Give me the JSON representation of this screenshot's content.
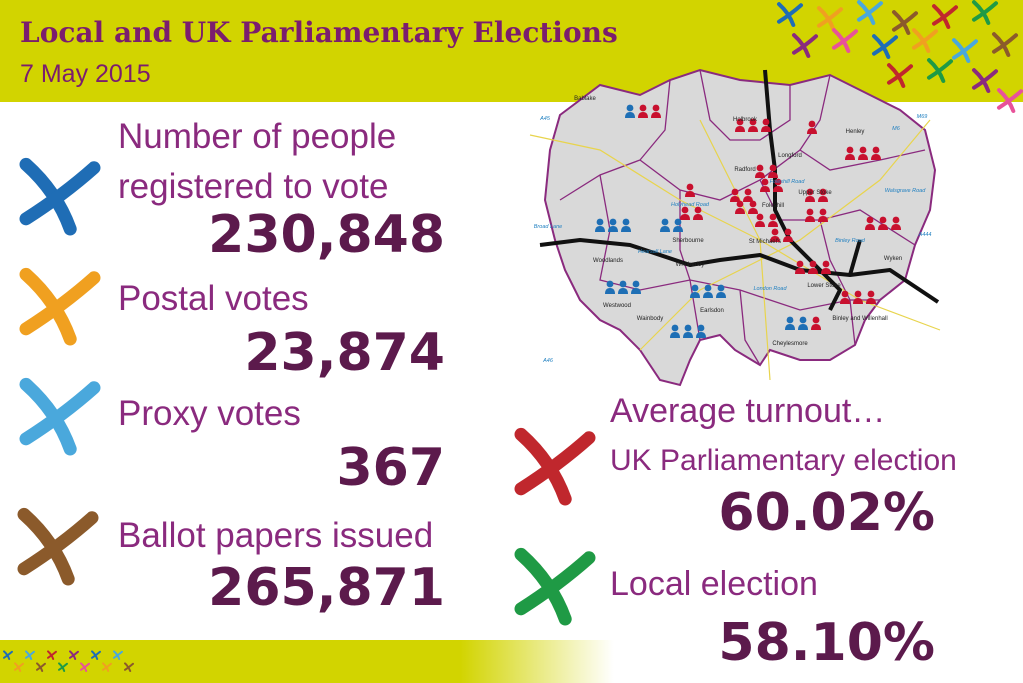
{
  "header": {
    "title": "Local and UK Parliamentary Elections",
    "date": "7 May 2015"
  },
  "stats": [
    {
      "label_lines": [
        "Number of people",
        "registered to vote"
      ],
      "value": "230,848"
    },
    {
      "label_lines": [
        "Postal votes"
      ],
      "value": "23,874"
    },
    {
      "label_lines": [
        "Proxy votes"
      ],
      "value": "367"
    },
    {
      "label_lines": [
        "Ballot papers issued"
      ],
      "value": "265,871"
    }
  ],
  "turnout": {
    "heading": "Average turnout…",
    "items": [
      {
        "label": "UK Parliamentary election",
        "value": "60.02%"
      },
      {
        "label": "Local election",
        "value": "58.10%"
      }
    ]
  },
  "map": {
    "wards": [
      "Bablake",
      "Holbrook",
      "Henley",
      "Longford",
      "Radford",
      "Foleshill",
      "Upper Stoke",
      "Sherbourne",
      "St Michael's",
      "Whoberley",
      "Woodlands",
      "Westwood",
      "Wainbody",
      "Earlsdon",
      "Lower Stoke",
      "Binley and Willenhall",
      "Cheylesmore",
      "Wyken"
    ],
    "roads": [
      "A45",
      "M6",
      "M69",
      "Broad Lane",
      "Holyhead Road",
      "Hearsall Lane",
      "Binley Road",
      "London Road",
      "Walsgrave Road",
      "Foleshill Road",
      "A444",
      "A46"
    ]
  }
}
